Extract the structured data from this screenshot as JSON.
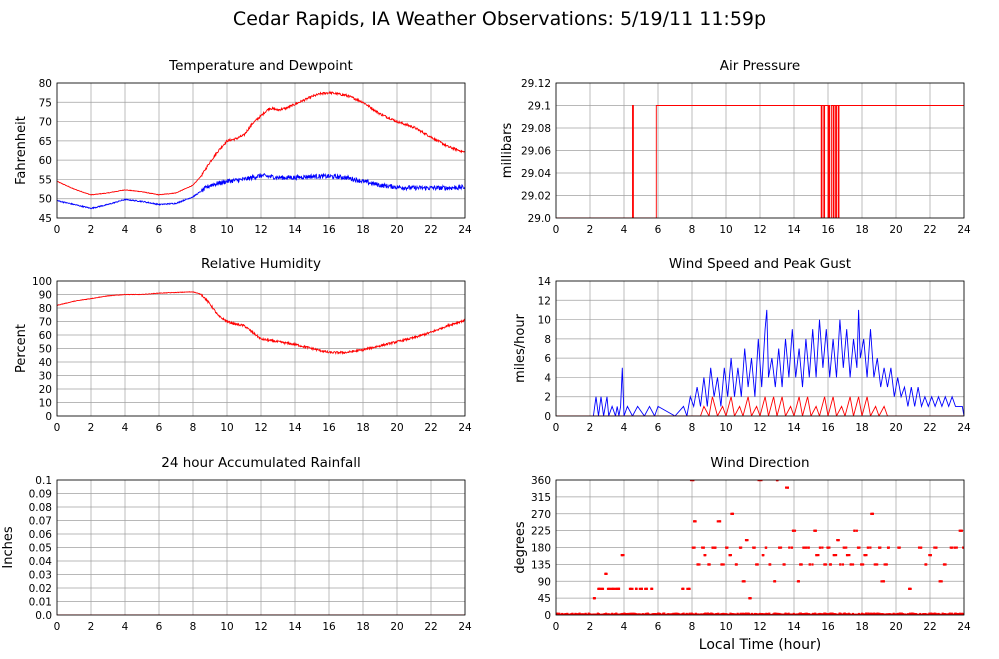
{
  "page": {
    "title": "Cedar Rapids, IA Weather Observations: 5/19/11 11:59p",
    "x_axis_label": "Local Time (hour)"
  },
  "colors": {
    "primary": "#ff0000",
    "secondary": "#0000ff",
    "grid": "#a0a0a0"
  },
  "chart_data": [
    {
      "id": "temp",
      "type": "line",
      "title": "Temperature and Dewpoint",
      "ylabel": "Fahrenheit",
      "xlim": [
        0,
        24
      ],
      "ylim": [
        45,
        80
      ],
      "xticks": [
        0,
        2,
        4,
        6,
        8,
        10,
        12,
        14,
        16,
        18,
        20,
        22,
        24
      ],
      "yticks": [
        45,
        50,
        55,
        60,
        65,
        70,
        75,
        80
      ],
      "grid": true,
      "series": [
        {
          "color": "#ff0000",
          "noise": 0.3,
          "x": [
            0,
            1,
            2,
            3,
            4,
            5,
            6,
            7,
            8,
            8.5,
            9,
            9.5,
            10,
            10.5,
            11,
            11.5,
            12,
            12.5,
            13,
            13.5,
            14,
            14.5,
            15,
            15.5,
            16,
            16.5,
            17,
            17.5,
            18,
            18.5,
            19,
            20,
            21,
            22,
            23,
            24
          ],
          "y": [
            54.5,
            52.5,
            51,
            51.5,
            52.3,
            51.8,
            51,
            51.5,
            53.5,
            56,
            59.5,
            62.5,
            65,
            65.5,
            66.5,
            69.5,
            71.5,
            73.5,
            73,
            73.5,
            74.5,
            75.5,
            76.5,
            77.2,
            77.5,
            77.2,
            76.8,
            76,
            75,
            73.5,
            72,
            70,
            68.5,
            66,
            63.5,
            62
          ]
        },
        {
          "color": "#0000ff",
          "noise": 0.6,
          "x": [
            0,
            1,
            2,
            3,
            4,
            5,
            6,
            7,
            8,
            8.5,
            9,
            9.5,
            10,
            11,
            12,
            13,
            14,
            15,
            16,
            17,
            18,
            19,
            20,
            21,
            22,
            23,
            24
          ],
          "y": [
            49.5,
            48.5,
            47.5,
            48.5,
            49.8,
            49.3,
            48.5,
            48.8,
            50.5,
            52,
            53.5,
            54,
            54.5,
            55,
            56,
            55.5,
            55.5,
            55.8,
            55.8,
            55.5,
            54.5,
            53.5,
            53,
            52.8,
            52.8,
            52.8,
            53
          ]
        }
      ]
    },
    {
      "id": "pressure",
      "type": "line",
      "title": "Air Pressure",
      "ylabel": "millibars",
      "xlim": [
        0,
        24
      ],
      "ylim": [
        29.0,
        29.12
      ],
      "xticks": [
        0,
        2,
        4,
        6,
        8,
        10,
        12,
        14,
        16,
        18,
        20,
        22,
        24
      ],
      "yticks": [
        29.0,
        29.02,
        29.04,
        29.06,
        29.08,
        29.1,
        29.12
      ],
      "ytick_labels": [
        "29.0",
        "29.02",
        "29.04",
        "29.06",
        "29.08",
        "29.1",
        "29.12"
      ],
      "grid": true,
      "series": [
        {
          "color": "#ff0000",
          "step": true,
          "x": [
            0,
            4.5,
            4.55,
            5.9,
            15.6,
            15.65,
            15.75,
            15.8,
            16.0,
            16.05,
            16.1,
            16.2,
            16.3,
            16.35,
            16.45,
            16.5,
            16.6,
            16.65,
            20.4,
            24
          ],
          "y": [
            29.0,
            29.1,
            29.0,
            29.1,
            29.0,
            29.1,
            29.0,
            29.1,
            29.0,
            29.1,
            29.0,
            29.1,
            29.0,
            29.1,
            29.0,
            29.1,
            29.0,
            29.1,
            29.1,
            29.1
          ]
        }
      ]
    },
    {
      "id": "humidity",
      "type": "line",
      "title": "Relative Humidity",
      "ylabel": "Percent",
      "xlim": [
        0,
        24
      ],
      "ylim": [
        0,
        100
      ],
      "xticks": [
        0,
        2,
        4,
        6,
        8,
        10,
        12,
        14,
        16,
        18,
        20,
        22,
        24
      ],
      "yticks": [
        0,
        10,
        20,
        30,
        40,
        50,
        60,
        70,
        80,
        90,
        100
      ],
      "grid": true,
      "series": [
        {
          "color": "#ff0000",
          "noise": 0.8,
          "x": [
            0,
            1,
            2,
            3,
            4,
            5,
            6,
            7,
            8,
            8.5,
            9,
            9.5,
            10,
            10.5,
            11,
            11.5,
            12,
            13,
            14,
            15,
            16,
            17,
            18,
            19,
            20,
            21,
            22,
            23,
            24
          ],
          "y": [
            82,
            85,
            87,
            89,
            90,
            90,
            91,
            91.5,
            92,
            90,
            83,
            74,
            70,
            68,
            67,
            62,
            57,
            55,
            53,
            50,
            47,
            47,
            49,
            52,
            55,
            58,
            62,
            67,
            71
          ]
        }
      ]
    },
    {
      "id": "wind",
      "type": "line",
      "title": "Wind Speed and Peak Gust",
      "ylabel": "miles/hour",
      "xlim": [
        0,
        24
      ],
      "ylim": [
        0,
        14
      ],
      "xticks": [
        0,
        2,
        4,
        6,
        8,
        10,
        12,
        14,
        16,
        18,
        20,
        22,
        24
      ],
      "yticks": [
        0,
        2,
        4,
        6,
        8,
        10,
        12,
        14
      ],
      "grid": true,
      "series": [
        {
          "color": "#0000ff",
          "x": [
            0,
            2.2,
            2.35,
            2.5,
            2.65,
            2.8,
            3.0,
            3.1,
            3.3,
            3.5,
            3.6,
            3.7,
            3.8,
            3.9,
            4.0,
            4.2,
            4.5,
            4.8,
            5.2,
            5.5,
            5.8,
            6.0,
            7.0,
            7.5,
            7.7,
            7.9,
            8.1,
            8.3,
            8.5,
            8.7,
            8.9,
            9.1,
            9.3,
            9.5,
            9.7,
            9.9,
            10.1,
            10.3,
            10.5,
            10.7,
            10.9,
            11.1,
            11.3,
            11.5,
            11.7,
            11.9,
            12.1,
            12.3,
            12.4,
            12.5,
            12.7,
            12.9,
            13.1,
            13.3,
            13.5,
            13.7,
            13.9,
            14.1,
            14.3,
            14.5,
            14.7,
            14.9,
            15.1,
            15.3,
            15.5,
            15.7,
            15.9,
            16.1,
            16.3,
            16.5,
            16.7,
            16.9,
            17.1,
            17.3,
            17.5,
            17.7,
            17.8,
            17.9,
            18.1,
            18.3,
            18.5,
            18.7,
            18.9,
            19.1,
            19.3,
            19.5,
            19.7,
            19.9,
            20.1,
            20.3,
            20.5,
            20.7,
            20.9,
            21.1,
            21.3,
            21.5,
            21.7,
            21.9,
            22.1,
            22.3,
            22.5,
            22.7,
            22.9,
            23.1,
            23.3,
            23.5,
            23.7,
            23.9,
            24
          ],
          "y": [
            0,
            0,
            2,
            0,
            2,
            0,
            2,
            0,
            1,
            0,
            1,
            0,
            1,
            5,
            0,
            1,
            0,
            1,
            0,
            1,
            0,
            1,
            0,
            1,
            0,
            2,
            1,
            3,
            1,
            4,
            1,
            5,
            2,
            4,
            1,
            5,
            2,
            6,
            2,
            5,
            2,
            7,
            3,
            6,
            2,
            8,
            3,
            9,
            11,
            4,
            6,
            3,
            7,
            3,
            8,
            4,
            9,
            4,
            7,
            3,
            8,
            4,
            9,
            4,
            10,
            5,
            9,
            4,
            8,
            4,
            10,
            5,
            9,
            4,
            8,
            5,
            11,
            6,
            8,
            4,
            9,
            4,
            6,
            3,
            5,
            3,
            5,
            2,
            4,
            2,
            3,
            1,
            3,
            1,
            3,
            1,
            2,
            1,
            2,
            1,
            2,
            1,
            2,
            1,
            2,
            1,
            1,
            1,
            0
          ]
        },
        {
          "color": "#ff0000",
          "x": [
            0,
            8.5,
            8.7,
            9.0,
            9.2,
            9.5,
            9.8,
            10.0,
            10.3,
            10.5,
            10.8,
            11.0,
            11.3,
            11.5,
            11.8,
            12.0,
            12.3,
            12.5,
            12.8,
            13.0,
            13.3,
            13.5,
            13.8,
            14.0,
            14.3,
            14.5,
            14.8,
            15.0,
            15.3,
            15.5,
            15.8,
            16.0,
            16.3,
            16.5,
            16.8,
            17.0,
            17.3,
            17.5,
            17.8,
            18.0,
            18.3,
            18.5,
            18.8,
            19.0,
            19.3,
            19.5,
            20.0,
            24
          ],
          "y": [
            0,
            0,
            1,
            0,
            2,
            0,
            1,
            0,
            2,
            0,
            1,
            0,
            2,
            0,
            1,
            0,
            2,
            0,
            2,
            0,
            2,
            0,
            1,
            0,
            2,
            0,
            2,
            0,
            1,
            0,
            2,
            0,
            2,
            0,
            1,
            0,
            2,
            0,
            2,
            0,
            2,
            0,
            1,
            0,
            1,
            0,
            0,
            0
          ]
        }
      ]
    },
    {
      "id": "rain",
      "type": "line",
      "title": "24 hour Accumulated Rainfall",
      "ylabel": "Inches",
      "xlim": [
        0,
        24
      ],
      "ylim": [
        0,
        0.1
      ],
      "xticks": [
        0,
        2,
        4,
        6,
        8,
        10,
        12,
        14,
        16,
        18,
        20,
        22,
        24
      ],
      "yticks": [
        0,
        0.01,
        0.02,
        0.03,
        0.04,
        0.05,
        0.06,
        0.07,
        0.08,
        0.09,
        0.1
      ],
      "ytick_labels": [
        "0.0",
        "0.01",
        "0.02",
        "0.03",
        "0.04",
        "0.05",
        "0.06",
        "0.07",
        "0.08",
        "0.09",
        "0.1"
      ],
      "grid": true,
      "series": [
        {
          "color": "#ff0000",
          "x": [
            0,
            24
          ],
          "y": [
            0,
            0
          ]
        }
      ]
    },
    {
      "id": "direction",
      "type": "scatter",
      "title": "Wind Direction",
      "ylabel": "degrees",
      "xlim": [
        0,
        24
      ],
      "ylim": [
        0,
        360
      ],
      "xticks": [
        0,
        2,
        4,
        6,
        8,
        10,
        12,
        14,
        16,
        18,
        20,
        22,
        24
      ],
      "yticks": [
        0,
        45,
        90,
        135,
        180,
        225,
        270,
        315,
        360
      ],
      "grid": true,
      "series": [
        {
          "color": "#ff0000",
          "x": [
            2.3,
            2.5,
            2.7,
            2.9,
            3.1,
            3.3,
            3.5,
            3.7,
            3.9,
            4.4,
            4.7,
            5.0,
            5.3,
            5.6,
            7.5,
            7.8,
            8.0,
            8.1,
            8.2,
            8.4,
            8.6,
            8.8,
            9.0,
            9.2,
            9.4,
            9.6,
            9.8,
            10.0,
            10.2,
            10.4,
            10.6,
            10.8,
            11.0,
            11.2,
            11.4,
            11.6,
            11.8,
            12.0,
            12.2,
            12.4,
            12.6,
            12.8,
            13.0,
            13.2,
            13.4,
            13.6,
            13.8,
            14.0,
            14.2,
            14.4,
            14.6,
            14.8,
            15.0,
            15.2,
            15.4,
            15.6,
            15.8,
            16.0,
            16.2,
            16.4,
            16.6,
            16.8,
            17.0,
            17.2,
            17.4,
            17.6,
            17.8,
            18.0,
            18.2,
            18.4,
            18.6,
            18.8,
            19.0,
            19.2,
            19.4,
            19.6,
            20.2,
            20.8,
            21.4,
            21.7,
            22.0,
            22.3,
            22.6,
            22.9,
            23.2,
            23.5,
            23.8,
            24.0
          ],
          "y": [
            45,
            70,
            70,
            110,
            70,
            70,
            70,
            70,
            160,
            70,
            70,
            70,
            70,
            70,
            70,
            70,
            360,
            180,
            250,
            135,
            180,
            160,
            135,
            180,
            180,
            250,
            135,
            180,
            160,
            270,
            135,
            180,
            90,
            200,
            45,
            180,
            135,
            360,
            160,
            180,
            135,
            90,
            360,
            180,
            135,
            340,
            180,
            225,
            90,
            135,
            180,
            180,
            135,
            225,
            160,
            180,
            135,
            180,
            135,
            160,
            200,
            135,
            180,
            160,
            135,
            225,
            180,
            135,
            160,
            180,
            270,
            135,
            180,
            90,
            135,
            180,
            180,
            70,
            180,
            135,
            160,
            180,
            90,
            135,
            180,
            180,
            225,
            180
          ]
        },
        {
          "color": "#ff0000",
          "band": true,
          "x": [
            0,
            24
          ],
          "y": [
            0,
            0
          ]
        }
      ]
    }
  ]
}
